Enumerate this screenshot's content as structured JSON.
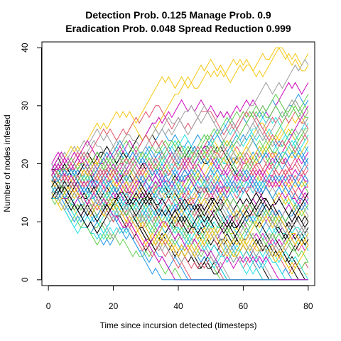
{
  "chart_data": {
    "type": "line",
    "title_line1": "Detection Prob. 0.125 Manage Prob. 0.9",
    "title_line2": "Eradication Prob. 0.048 Spread Reduction 0.999",
    "xlabel": "Time since incursion detected (timesteps)",
    "ylabel": "Number of nodes infested",
    "xlim": [
      -2,
      82
    ],
    "ylim": [
      -1,
      41
    ],
    "x_ticks": [
      0,
      20,
      40,
      60,
      80
    ],
    "y_ticks": [
      0,
      10,
      20,
      30,
      40
    ],
    "x_tick_labels": [
      "0",
      "20",
      "40",
      "60",
      "80"
    ],
    "y_tick_labels": [
      "0",
      "10",
      "20",
      "30",
      "40"
    ],
    "grid": false,
    "n_series": 100,
    "n_steps": 80,
    "start_range": [
      14,
      20
    ],
    "series_colors": [
      "#000000",
      "#DF536B",
      "#61D04F",
      "#2297E6",
      "#28E2E5",
      "#CD0BBC",
      "#F5C710",
      "#9E9E9E"
    ]
  }
}
